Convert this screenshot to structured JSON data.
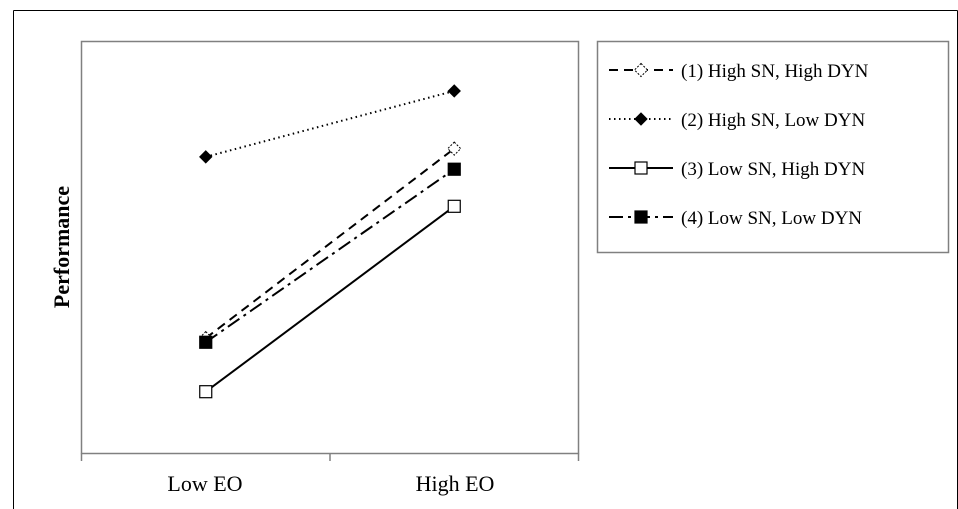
{
  "chart_data": {
    "type": "line",
    "title": "",
    "xlabel": "",
    "ylabel": "Performance",
    "categories": [
      "Low EO",
      "High EO"
    ],
    "ylim": [
      0,
      100
    ],
    "grid": false,
    "legend_position": "right",
    "series": [
      {
        "name": "(1) High SN, High DYN",
        "values": [
          28,
          74
        ],
        "line_style": "dashed",
        "marker": "open-diamond",
        "color": "#000000"
      },
      {
        "name": "(2) High SN, Low DYN",
        "values": [
          72,
          88
        ],
        "line_style": "dotted",
        "marker": "filled-diamond",
        "color": "#000000"
      },
      {
        "name": "(3) Low SN, High DYN",
        "values": [
          15,
          60
        ],
        "line_style": "solid",
        "marker": "open-square",
        "color": "#000000"
      },
      {
        "name": "(4) Low SN, Low DYN",
        "values": [
          27,
          69
        ],
        "line_style": "dash-dot",
        "marker": "filled-square",
        "color": "#000000"
      }
    ]
  }
}
